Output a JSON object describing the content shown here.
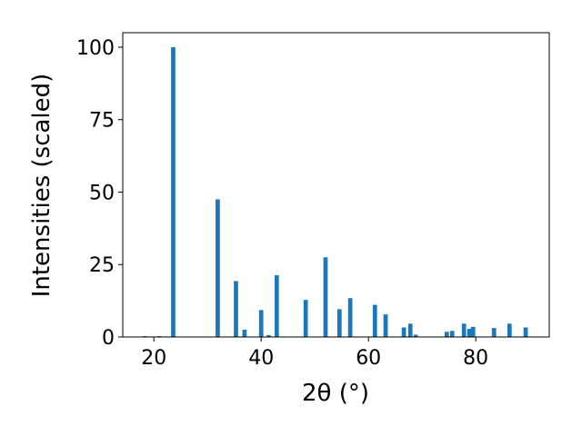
{
  "chart_data": {
    "type": "bar",
    "xlabel": "2θ (°)",
    "ylabel": "Intensities (scaled)",
    "x": [
      18.3,
      21.0,
      23.6,
      31.9,
      35.3,
      36.9,
      40.0,
      41.4,
      42.9,
      48.3,
      52.0,
      54.6,
      56.6,
      61.2,
      63.2,
      66.6,
      67.8,
      68.8,
      74.6,
      75.6,
      77.8,
      78.8,
      79.5,
      83.4,
      86.3,
      89.3
    ],
    "values": [
      0.3,
      0.3,
      100,
      47.5,
      19.3,
      2.5,
      9.3,
      0.6,
      21.3,
      12.8,
      27.5,
      9.6,
      13.4,
      11.1,
      7.8,
      3.3,
      4.6,
      0.8,
      1.8,
      2.1,
      4.6,
      2.8,
      3.5,
      3.1,
      4.6,
      3.3
    ],
    "color": "#1f77b4",
    "xlim": [
      14.2,
      93.7
    ],
    "xticks": [
      20,
      40,
      60,
      80
    ],
    "ylim": [
      0,
      105
    ],
    "yticks": [
      0,
      25,
      50,
      75,
      100
    ]
  }
}
